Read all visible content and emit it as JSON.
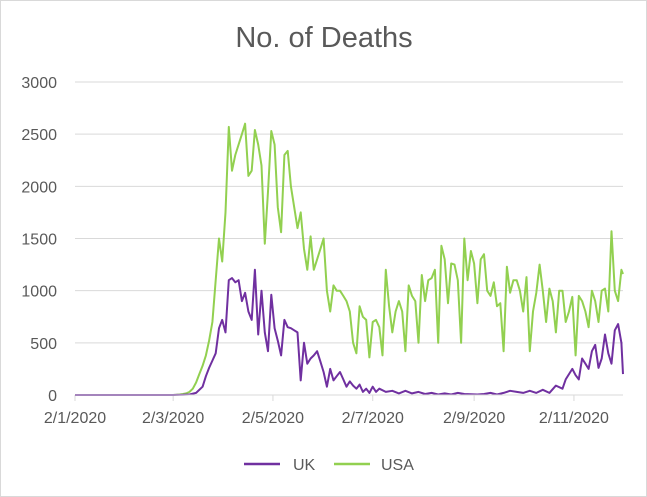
{
  "chart_data": {
    "type": "line",
    "title": "No. of Deaths",
    "xlabel": "",
    "ylabel": "",
    "x_tick_labels": [
      "2/1/2020",
      "2/3/2020",
      "2/5/2020",
      "2/7/2020",
      "2/9/2020",
      "2/11/2020"
    ],
    "x_tick_days": [
      0,
      60,
      121,
      182,
      244,
      305
    ],
    "x_range_days": [
      0,
      335
    ],
    "ylim": [
      0,
      3000
    ],
    "y_ticks": [
      0,
      500,
      1000,
      1500,
      2000,
      2500,
      3000
    ],
    "grid": "horizontal",
    "legend": "bottom",
    "series": [
      {
        "name": "UK",
        "color": "#7030a0",
        "points": [
          [
            0,
            0
          ],
          [
            60,
            0
          ],
          [
            62,
            1
          ],
          [
            66,
            2
          ],
          [
            70,
            5
          ],
          [
            74,
            20
          ],
          [
            78,
            80
          ],
          [
            80,
            180
          ],
          [
            82,
            260
          ],
          [
            84,
            330
          ],
          [
            86,
            400
          ],
          [
            88,
            640
          ],
          [
            90,
            720
          ],
          [
            92,
            600
          ],
          [
            94,
            1100
          ],
          [
            96,
            1120
          ],
          [
            98,
            1080
          ],
          [
            100,
            1100
          ],
          [
            102,
            900
          ],
          [
            104,
            980
          ],
          [
            106,
            800
          ],
          [
            108,
            720
          ],
          [
            110,
            1200
          ],
          [
            112,
            580
          ],
          [
            114,
            1000
          ],
          [
            116,
            600
          ],
          [
            118,
            420
          ],
          [
            120,
            960
          ],
          [
            122,
            640
          ],
          [
            124,
            520
          ],
          [
            126,
            380
          ],
          [
            128,
            720
          ],
          [
            130,
            650
          ],
          [
            132,
            640
          ],
          [
            134,
            620
          ],
          [
            136,
            600
          ],
          [
            138,
            140
          ],
          [
            140,
            500
          ],
          [
            142,
            300
          ],
          [
            144,
            350
          ],
          [
            146,
            380
          ],
          [
            148,
            420
          ],
          [
            150,
            320
          ],
          [
            152,
            220
          ],
          [
            154,
            80
          ],
          [
            156,
            250
          ],
          [
            158,
            140
          ],
          [
            160,
            180
          ],
          [
            162,
            220
          ],
          [
            164,
            150
          ],
          [
            166,
            80
          ],
          [
            168,
            130
          ],
          [
            170,
            90
          ],
          [
            172,
            60
          ],
          [
            174,
            100
          ],
          [
            176,
            30
          ],
          [
            178,
            60
          ],
          [
            180,
            20
          ],
          [
            182,
            80
          ],
          [
            184,
            30
          ],
          [
            186,
            60
          ],
          [
            190,
            30
          ],
          [
            194,
            40
          ],
          [
            198,
            15
          ],
          [
            202,
            40
          ],
          [
            206,
            15
          ],
          [
            210,
            30
          ],
          [
            214,
            10
          ],
          [
            218,
            20
          ],
          [
            222,
            5
          ],
          [
            226,
            15
          ],
          [
            230,
            5
          ],
          [
            234,
            20
          ],
          [
            238,
            10
          ],
          [
            242,
            8
          ],
          [
            246,
            5
          ],
          [
            250,
            10
          ],
          [
            254,
            20
          ],
          [
            258,
            5
          ],
          [
            262,
            20
          ],
          [
            266,
            40
          ],
          [
            270,
            30
          ],
          [
            274,
            20
          ],
          [
            278,
            40
          ],
          [
            282,
            20
          ],
          [
            286,
            50
          ],
          [
            290,
            20
          ],
          [
            294,
            90
          ],
          [
            298,
            60
          ],
          [
            300,
            150
          ],
          [
            302,
            200
          ],
          [
            304,
            250
          ],
          [
            306,
            190
          ],
          [
            308,
            150
          ],
          [
            310,
            350
          ],
          [
            312,
            300
          ],
          [
            314,
            250
          ],
          [
            316,
            420
          ],
          [
            318,
            480
          ],
          [
            320,
            260
          ],
          [
            322,
            350
          ],
          [
            324,
            580
          ],
          [
            326,
            400
          ],
          [
            328,
            300
          ],
          [
            330,
            620
          ],
          [
            332,
            680
          ],
          [
            334,
            500
          ],
          [
            335,
            200
          ]
        ]
      },
      {
        "name": "USA",
        "color": "#92d050",
        "points": [
          [
            0,
            0
          ],
          [
            60,
            0
          ],
          [
            62,
            2
          ],
          [
            64,
            5
          ],
          [
            66,
            10
          ],
          [
            68,
            15
          ],
          [
            70,
            30
          ],
          [
            72,
            60
          ],
          [
            74,
            120
          ],
          [
            76,
            200
          ],
          [
            78,
            280
          ],
          [
            80,
            380
          ],
          [
            82,
            520
          ],
          [
            84,
            700
          ],
          [
            86,
            1100
          ],
          [
            88,
            1500
          ],
          [
            90,
            1280
          ],
          [
            92,
            1750
          ],
          [
            94,
            2570
          ],
          [
            96,
            2150
          ],
          [
            98,
            2300
          ],
          [
            100,
            2400
          ],
          [
            102,
            2500
          ],
          [
            104,
            2600
          ],
          [
            106,
            2100
          ],
          [
            108,
            2150
          ],
          [
            110,
            2540
          ],
          [
            112,
            2400
          ],
          [
            114,
            2200
          ],
          [
            116,
            1450
          ],
          [
            118,
            1950
          ],
          [
            120,
            2530
          ],
          [
            122,
            2400
          ],
          [
            124,
            1800
          ],
          [
            126,
            1560
          ],
          [
            128,
            2300
          ],
          [
            130,
            2340
          ],
          [
            132,
            2000
          ],
          [
            134,
            1800
          ],
          [
            136,
            1600
          ],
          [
            138,
            1750
          ],
          [
            140,
            1400
          ],
          [
            142,
            1200
          ],
          [
            144,
            1520
          ],
          [
            146,
            1200
          ],
          [
            148,
            1300
          ],
          [
            150,
            1400
          ],
          [
            152,
            1500
          ],
          [
            154,
            1000
          ],
          [
            156,
            800
          ],
          [
            158,
            1050
          ],
          [
            160,
            1000
          ],
          [
            162,
            1000
          ],
          [
            164,
            950
          ],
          [
            166,
            900
          ],
          [
            168,
            800
          ],
          [
            170,
            500
          ],
          [
            172,
            400
          ],
          [
            174,
            850
          ],
          [
            176,
            750
          ],
          [
            178,
            720
          ],
          [
            180,
            360
          ],
          [
            182,
            700
          ],
          [
            184,
            720
          ],
          [
            186,
            650
          ],
          [
            188,
            380
          ],
          [
            190,
            1200
          ],
          [
            192,
            850
          ],
          [
            194,
            600
          ],
          [
            196,
            800
          ],
          [
            198,
            900
          ],
          [
            200,
            800
          ],
          [
            202,
            420
          ],
          [
            204,
            1050
          ],
          [
            206,
            950
          ],
          [
            208,
            900
          ],
          [
            210,
            500
          ],
          [
            212,
            1150
          ],
          [
            214,
            900
          ],
          [
            216,
            1100
          ],
          [
            218,
            1120
          ],
          [
            220,
            1200
          ],
          [
            222,
            500
          ],
          [
            224,
            1430
          ],
          [
            226,
            1300
          ],
          [
            228,
            880
          ],
          [
            230,
            1260
          ],
          [
            232,
            1250
          ],
          [
            234,
            1100
          ],
          [
            236,
            500
          ],
          [
            238,
            1500
          ],
          [
            240,
            1100
          ],
          [
            242,
            1380
          ],
          [
            244,
            1260
          ],
          [
            246,
            880
          ],
          [
            248,
            1300
          ],
          [
            250,
            1350
          ],
          [
            252,
            1000
          ],
          [
            254,
            950
          ],
          [
            256,
            1080
          ],
          [
            258,
            850
          ],
          [
            260,
            880
          ],
          [
            262,
            420
          ],
          [
            264,
            1230
          ],
          [
            266,
            980
          ],
          [
            268,
            1100
          ],
          [
            270,
            1100
          ],
          [
            272,
            1000
          ],
          [
            274,
            800
          ],
          [
            276,
            1130
          ],
          [
            278,
            420
          ],
          [
            280,
            800
          ],
          [
            282,
            980
          ],
          [
            284,
            1250
          ],
          [
            286,
            1000
          ],
          [
            288,
            700
          ],
          [
            290,
            1020
          ],
          [
            292,
            900
          ],
          [
            294,
            600
          ],
          [
            296,
            1000
          ],
          [
            298,
            1000
          ],
          [
            300,
            700
          ],
          [
            302,
            800
          ],
          [
            304,
            940
          ],
          [
            306,
            380
          ],
          [
            308,
            950
          ],
          [
            310,
            900
          ],
          [
            312,
            800
          ],
          [
            314,
            650
          ],
          [
            316,
            1000
          ],
          [
            318,
            900
          ],
          [
            320,
            700
          ],
          [
            322,
            1000
          ],
          [
            324,
            1020
          ],
          [
            326,
            800
          ],
          [
            328,
            1570
          ],
          [
            330,
            1000
          ],
          [
            332,
            900
          ],
          [
            334,
            1200
          ],
          [
            335,
            1160
          ]
        ]
      }
    ]
  }
}
